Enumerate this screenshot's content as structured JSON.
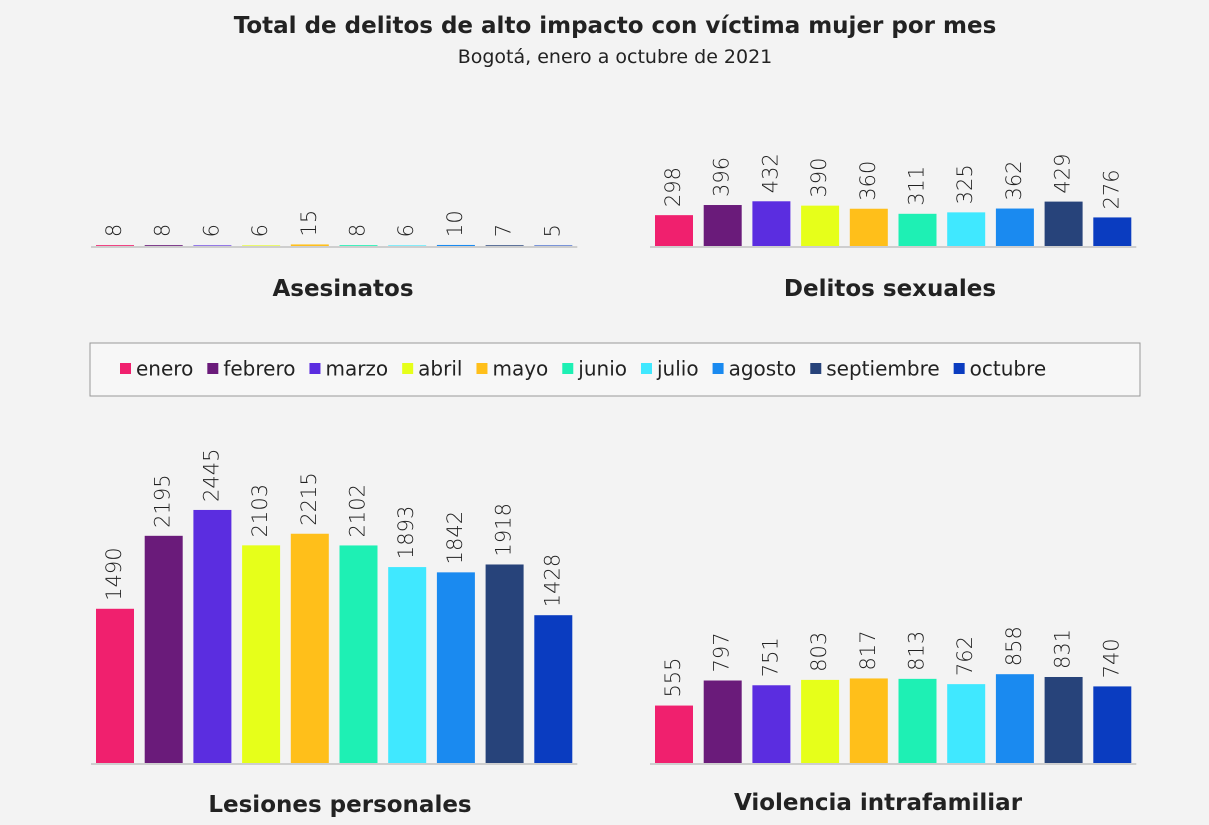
{
  "title": "Total de delitos de alto impacto con víctima mujer por mes",
  "subtitle": "Bogotá, enero a octubre de 2021",
  "categories": [
    "enero",
    "febrero",
    "marzo",
    "abril",
    "mayo",
    "junio",
    "julio",
    "agosto",
    "septiembre",
    "octubre"
  ],
  "colors": [
    "#f0206e",
    "#6a1b7a",
    "#5b2de0",
    "#e6ff1a",
    "#ffbf1a",
    "#1ef0b4",
    "#40e8ff",
    "#1a8af0",
    "#27437a",
    "#0a3cc0"
  ],
  "chart_data": [
    {
      "type": "bar",
      "title": "Asesinatos",
      "values": [
        8,
        8,
        6,
        6,
        15,
        8,
        6,
        10,
        7,
        5
      ]
    },
    {
      "type": "bar",
      "title": "Delitos sexuales",
      "values": [
        298,
        396,
        432,
        390,
        360,
        311,
        325,
        362,
        429,
        276
      ]
    },
    {
      "type": "bar",
      "title": "Lesiones personales",
      "values": [
        1490,
        2195,
        2445,
        2103,
        2215,
        2102,
        1893,
        1842,
        1918,
        1428
      ]
    },
    {
      "type": "bar",
      "title": "Violencia intrafamiliar",
      "values": [
        555,
        797,
        751,
        803,
        817,
        813,
        762,
        858,
        831,
        740
      ]
    }
  ]
}
